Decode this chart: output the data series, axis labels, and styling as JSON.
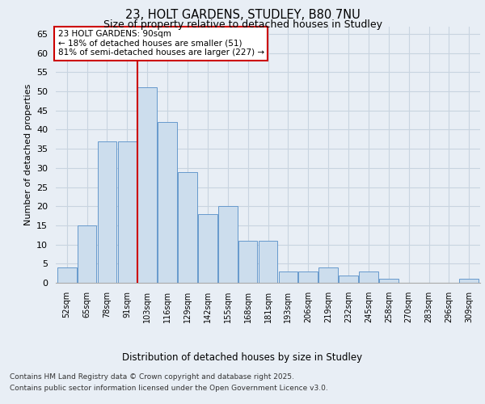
{
  "title1": "23, HOLT GARDENS, STUDLEY, B80 7NU",
  "title2": "Size of property relative to detached houses in Studley",
  "xlabel": "Distribution of detached houses by size in Studley",
  "ylabel": "Number of detached properties",
  "categories": [
    "52sqm",
    "65sqm",
    "78sqm",
    "91sqm",
    "103sqm",
    "116sqm",
    "129sqm",
    "142sqm",
    "155sqm",
    "168sqm",
    "181sqm",
    "193sqm",
    "206sqm",
    "219sqm",
    "232sqm",
    "245sqm",
    "258sqm",
    "270sqm",
    "283sqm",
    "296sqm",
    "309sqm"
  ],
  "values": [
    4,
    15,
    37,
    37,
    51,
    42,
    29,
    18,
    20,
    11,
    11,
    3,
    3,
    4,
    2,
    3,
    1,
    0,
    0,
    0,
    1
  ],
  "bar_color": "#ccdded",
  "bar_edge_color": "#6699cc",
  "grid_color": "#c8d4e0",
  "background_color": "#e8eef5",
  "vline_x_index": 3.5,
  "vline_color": "#cc0000",
  "annotation_text": "23 HOLT GARDENS: 90sqm\n← 18% of detached houses are smaller (51)\n81% of semi-detached houses are larger (227) →",
  "annotation_box_color": "#ffffff",
  "annotation_box_edge": "#cc0000",
  "ylim": [
    0,
    67
  ],
  "yticks": [
    0,
    5,
    10,
    15,
    20,
    25,
    30,
    35,
    40,
    45,
    50,
    55,
    60,
    65
  ],
  "footer1": "Contains HM Land Registry data © Crown copyright and database right 2025.",
  "footer2": "Contains public sector information licensed under the Open Government Licence v3.0."
}
